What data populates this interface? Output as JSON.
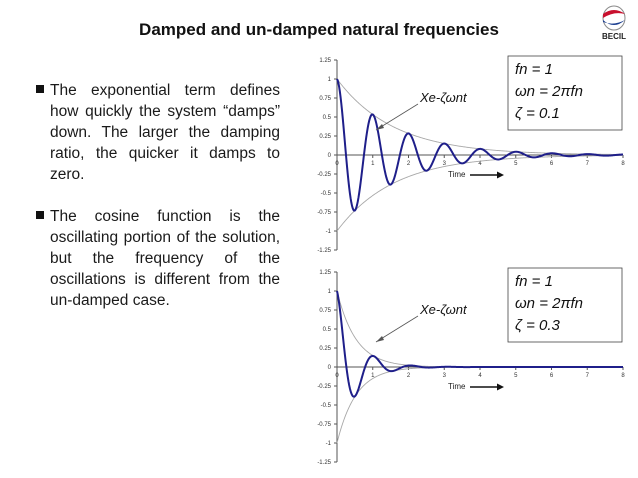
{
  "slide": {
    "title": "Damped and un-damped natural frequencies",
    "logo_text": "BECIL",
    "bullets": [
      "The exponential term defines how quickly the system “damps” down. The larger the damping ratio, the quicker it damps to zero.",
      "The cosine function is the oscillating portion of the solution, but the frequency of the oscillations is different from the un-damped case."
    ]
  },
  "colors": {
    "response": "#1f1f8a",
    "envelope": "#a8a8a8",
    "axis": "#555555",
    "logo_red": "#c8102e",
    "logo_blue": "#1a3d8f"
  },
  "chart_data": [
    {
      "type": "line",
      "xlim": [
        0,
        8
      ],
      "ylim": [
        -1.25,
        1.25
      ],
      "xticks": [
        "0",
        "1",
        "2",
        "3",
        "4",
        "5",
        "6",
        "7",
        "8"
      ],
      "yticks": [
        "1.25",
        "1",
        "0.75",
        "0.5",
        "0.25",
        "0",
        "-0.25",
        "-0.5",
        "-0.75",
        "-1",
        "-1.25"
      ],
      "grid": false,
      "annotations": {
        "time_label": "Time",
        "envelope_label": "Xe^{-ζωnt}",
        "params": [
          "fn = 1",
          "ωn = 2πfn",
          "ζ = 0.1"
        ]
      },
      "fn": 1,
      "zeta": 0.1,
      "series": [
        {
          "x": [
            0,
            0.25,
            0.5,
            0.75,
            1.0,
            1.25,
            1.5,
            1.75,
            2.0,
            2.25,
            2.5,
            3.0,
            3.5,
            4.0,
            5.0,
            6.0,
            7.0,
            8.0
          ],
          "values": [
            1.0,
            0.0,
            -0.73,
            0.0,
            0.53,
            0.0,
            -0.39,
            0.0,
            0.28,
            0.0,
            -0.21,
            0.15,
            -0.11,
            0.08,
            0.04,
            0.02,
            0.01,
            0.0
          ]
        }
      ]
    },
    {
      "type": "line",
      "xlim": [
        0,
        8
      ],
      "ylim": [
        -1.25,
        1.25
      ],
      "xticks": [
        "0",
        "1",
        "2",
        "3",
        "4",
        "5",
        "6",
        "7",
        "8"
      ],
      "yticks": [
        "1.25",
        "1",
        "0.75",
        "0.5",
        "0.25",
        "0",
        "-0.25",
        "-0.5",
        "-0.75",
        "-1",
        "-1.25"
      ],
      "grid": false,
      "annotations": {
        "time_label": "Time",
        "envelope_label": "Xe^{-ζωnt}",
        "params": [
          "fn = 1",
          "ωn = 2πfn",
          "ζ = 0.3"
        ]
      },
      "fn": 1,
      "zeta": 0.3,
      "series": [
        {
          "x": [
            0,
            0.25,
            0.5,
            0.75,
            1.0,
            1.25,
            1.5,
            2.0,
            2.5,
            3.0,
            4.0,
            8.0
          ],
          "values": [
            1.0,
            0.0,
            -0.39,
            0.0,
            0.15,
            0.0,
            -0.06,
            0.02,
            -0.01,
            0.0,
            0.0,
            0.0
          ]
        }
      ]
    }
  ]
}
